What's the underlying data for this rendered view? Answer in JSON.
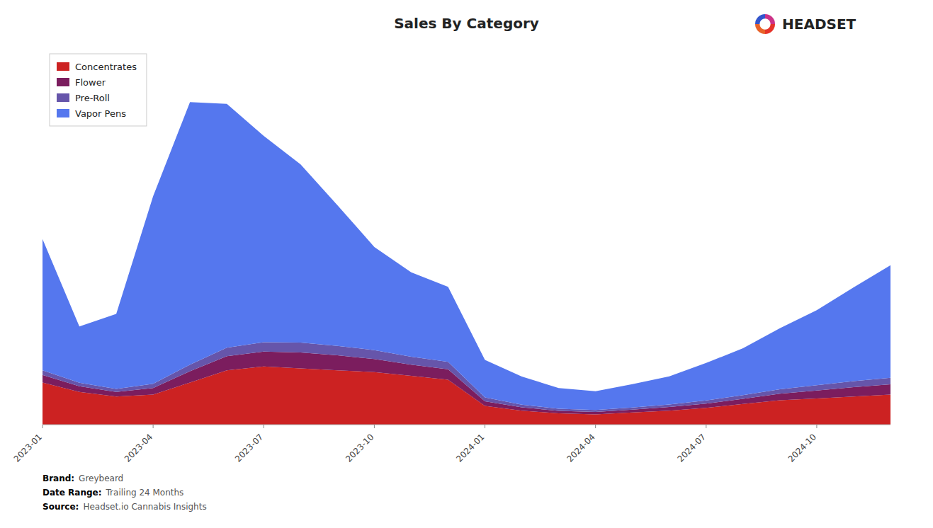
{
  "chart_data": {
    "type": "area",
    "title": "Sales By Category",
    "categories": [
      "2023-01",
      null,
      null,
      "2023-04",
      null,
      null,
      "2023-07",
      null,
      null,
      "2023-10",
      null,
      null,
      "2024-01",
      null,
      null,
      "2024-04",
      null,
      null,
      "2024-07",
      null,
      null,
      "2024-10",
      null,
      null
    ],
    "series": [
      {
        "name": "Concentrates",
        "color": "#cc2222",
        "values": [
          4500,
          3500,
          3000,
          3200,
          4500,
          5800,
          6200,
          6000,
          5800,
          5600,
          5200,
          4800,
          2000,
          1500,
          1200,
          1100,
          1300,
          1500,
          1800,
          2200,
          2600,
          2800,
          3000,
          3200
        ]
      },
      {
        "name": "Flower",
        "color": "#7b1d5e",
        "values": [
          800,
          600,
          500,
          700,
          1200,
          1500,
          1600,
          1700,
          1600,
          1400,
          1200,
          1100,
          500,
          350,
          280,
          260,
          300,
          380,
          450,
          550,
          700,
          850,
          1000,
          1100
        ]
      },
      {
        "name": "Pre-Roll",
        "color": "#6655aa",
        "values": [
          500,
          380,
          320,
          450,
          700,
          900,
          1000,
          1050,
          1000,
          950,
          850,
          800,
          400,
          280,
          220,
          200,
          230,
          280,
          330,
          400,
          480,
          560,
          650,
          700
        ]
      },
      {
        "name": "Vapor Pens",
        "color": "#5577ee",
        "values": [
          14000,
          6000,
          8000,
          20000,
          28000,
          26000,
          22000,
          19000,
          15000,
          11000,
          9000,
          8000,
          4000,
          3000,
          2200,
          2000,
          2500,
          3000,
          4000,
          5000,
          6500,
          8000,
          10000,
          12000
        ]
      }
    ],
    "stacked": true,
    "ylim": [
      0,
      40000
    ],
    "tick_labels": "x",
    "grid": false,
    "legend": "upper-left",
    "annotations": [
      {
        "label": "Brand:",
        "text": "Greybeard"
      },
      {
        "label": "Date Range:",
        "text": "Trailing 24 Months"
      },
      {
        "label": "Source:",
        "text": "Headset.io Cannabis Insights"
      },
      {
        "text": "HEADSET"
      }
    ]
  }
}
